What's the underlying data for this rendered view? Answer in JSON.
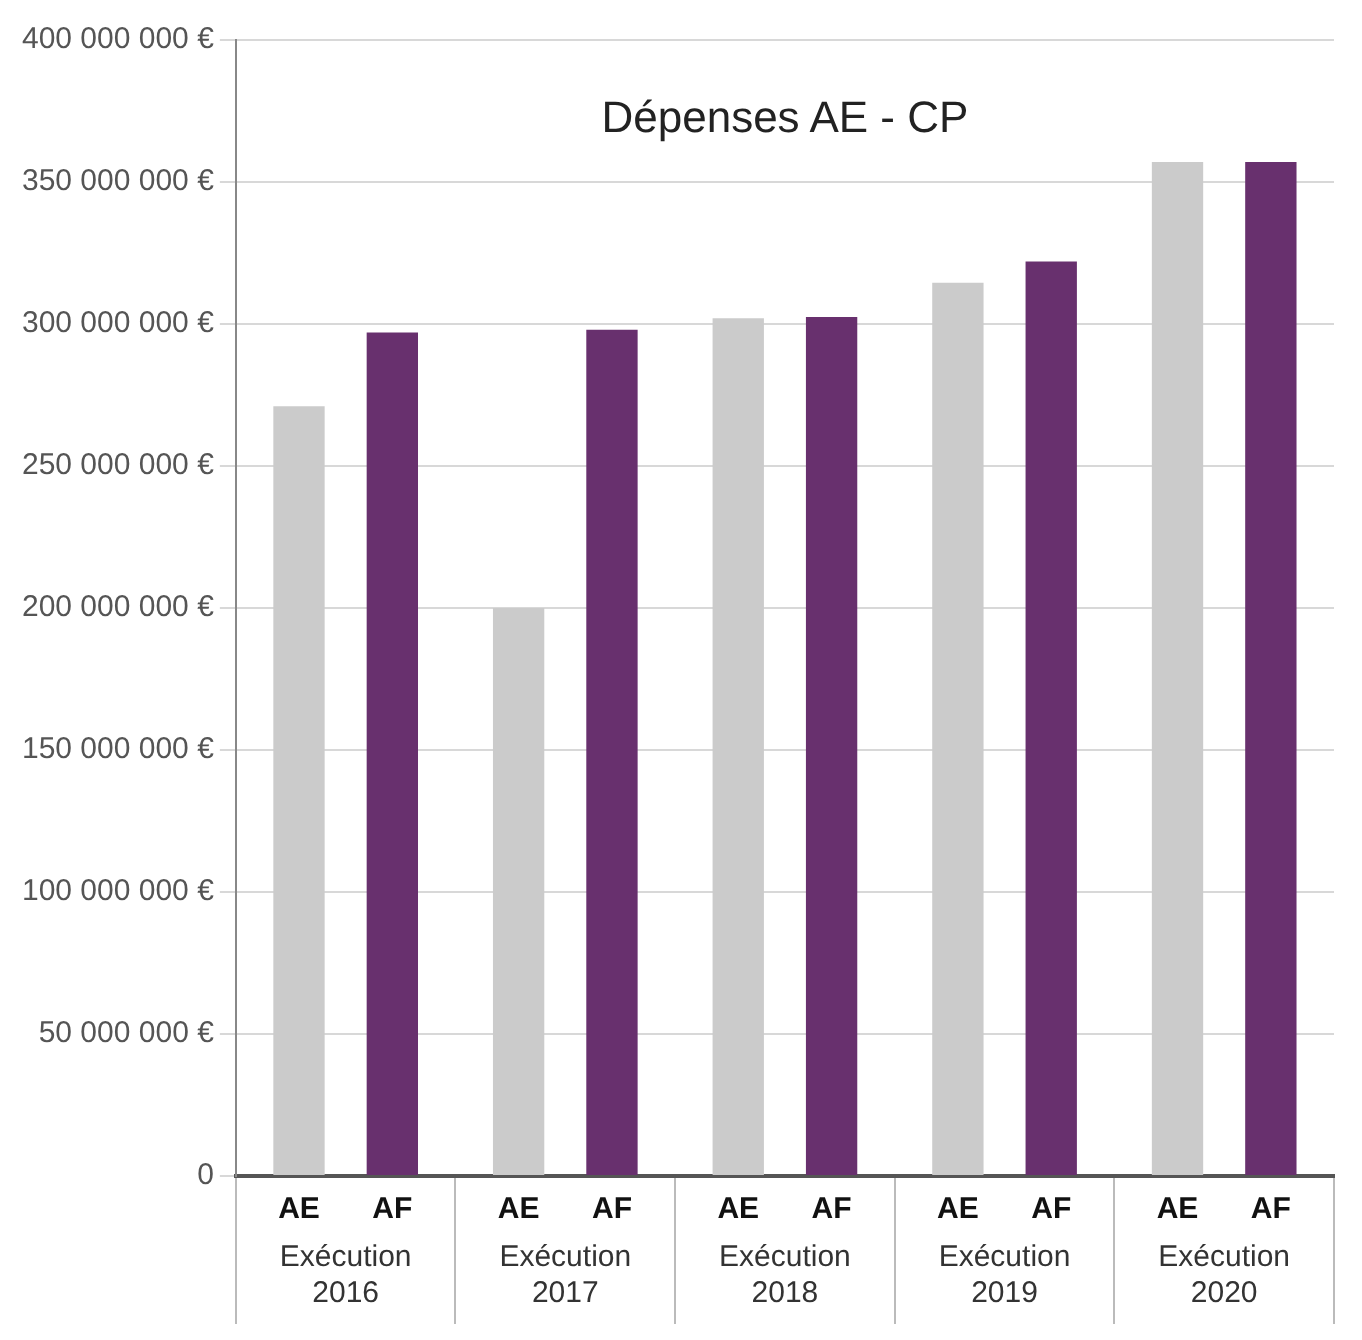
{
  "chart_data": {
    "type": "bar",
    "title": "Dépenses AE - CP",
    "categories": [
      "Exécution 2016",
      "Exécution 2017",
      "Exécution 2018",
      "Exécution 2019",
      "Exécution 2020"
    ],
    "series": [
      {
        "name": "AE",
        "color": "#cbcbcb",
        "values": [
          271000000,
          200000000,
          302000000,
          314500000,
          357000000
        ]
      },
      {
        "name": "AF",
        "color": "#68306e",
        "values": [
          297000000,
          298000000,
          302500000,
          322000000,
          357000000
        ]
      }
    ],
    "ylim": [
      0,
      400000000
    ],
    "yticks": [
      0,
      {
        "value": 50000000,
        "label": "50 000 000 €"
      },
      {
        "value": 100000000,
        "label": "100 000 000 €"
      },
      {
        "value": 150000000,
        "label": "150 000 000 €"
      },
      {
        "value": 200000000,
        "label": "200 000 000 €"
      },
      {
        "value": 250000000,
        "label": "250 000 000 €"
      },
      {
        "value": 300000000,
        "label": "300 000 000 €"
      },
      {
        "value": 350000000,
        "label": "350 000 000 €"
      },
      {
        "value": 400000000,
        "label": "400 000 000 €"
      }
    ],
    "grid": "y",
    "legend": false
  }
}
